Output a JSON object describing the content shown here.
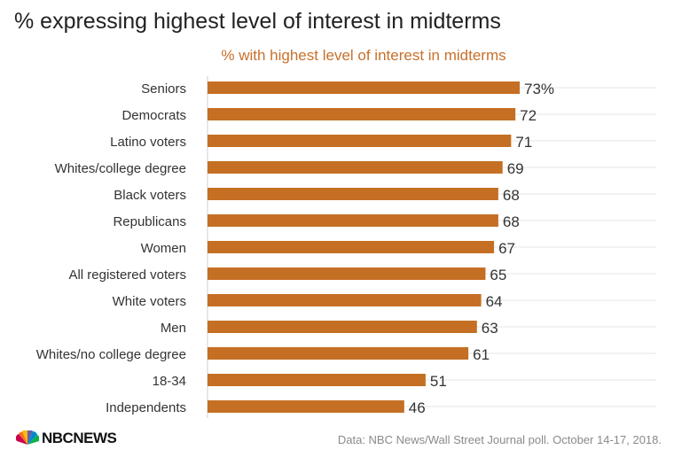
{
  "title": "% expressing highest level of interest in midterms",
  "subtitle": "% with highest level of interest in midterms",
  "source": "Data: NBC News/Wall Street Journal poll. October 14-17, 2018.",
  "logo": "NBCNEWS",
  "colors": {
    "bar": "#c56f24",
    "title": "#222222",
    "subtitle": "#c8702a",
    "grid": "#e4e4e4"
  },
  "chart_data": {
    "type": "bar",
    "orientation": "horizontal",
    "categories": [
      "Seniors",
      "Democrats",
      "Latino voters",
      "Whites/college degree",
      "Black voters",
      "Republicans",
      "Women",
      "All registered voters",
      "White voters",
      "Men",
      "Whites/no college degree",
      "18-34",
      "Independents"
    ],
    "values": [
      73,
      72,
      71,
      69,
      68,
      68,
      67,
      65,
      64,
      63,
      61,
      51,
      46
    ],
    "data_labels": [
      "73%",
      "72",
      "71",
      "69",
      "68",
      "68",
      "67",
      "65",
      "64",
      "63",
      "61",
      "51",
      "46"
    ],
    "title": "% with highest level of interest in midterms",
    "xlim": [
      0,
      100
    ],
    "grid": true
  }
}
